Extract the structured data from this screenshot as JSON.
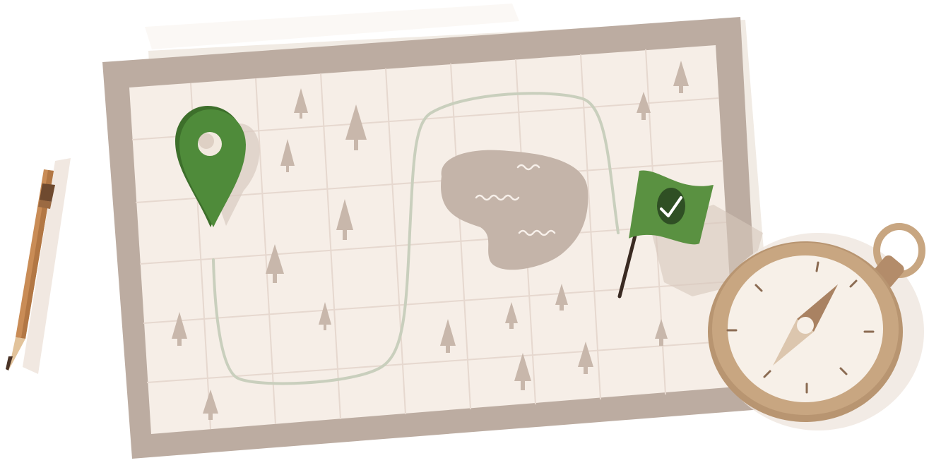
{
  "illustration": {
    "subject": "map-with-route",
    "palette": {
      "background": "#ffffff",
      "paper_shadow": "#f1ebe4",
      "map_frame": "#bcaca1",
      "map_paper": "#f6eee7",
      "grid_line": "#e6d8cf",
      "tree": "#c8b7ab",
      "lake": "#c4b4a9",
      "route": "#c9cfbd",
      "pin_green": "#4f8b3a",
      "pin_green_dark": "#3d6f2b",
      "flag_green": "#5a9141",
      "flag_check_bg": "#2f4f24",
      "check_mark": "#ffffff",
      "pencil_body": "#c98c56",
      "compass_brass": "#c8a681",
      "compass_face": "#f7f0e8"
    },
    "icons": [
      "location-pin-icon",
      "finish-flag-icon",
      "checkmark-icon",
      "compass-icon",
      "compass-needle-icon",
      "pencil-icon",
      "lake-icon",
      "tree-icon"
    ]
  }
}
